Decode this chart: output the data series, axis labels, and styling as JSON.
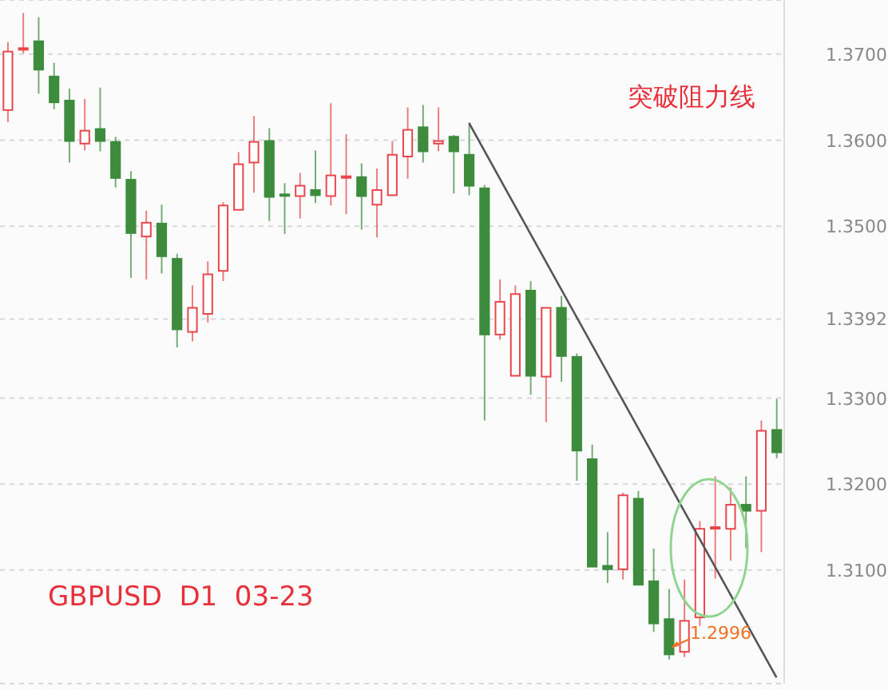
{
  "chart_data": {
    "type": "candlestick",
    "categories": [
      null,
      null,
      null,
      null,
      null,
      null,
      null,
      null,
      null,
      null,
      null,
      null,
      null,
      null,
      null,
      null,
      null,
      null,
      null,
      null,
      null,
      null,
      null,
      null,
      null,
      null,
      null,
      null,
      null,
      null,
      null,
      null,
      null,
      null,
      null,
      null,
      null,
      null,
      null,
      null,
      null,
      null,
      null,
      null,
      null,
      null,
      null,
      null,
      null,
      null,
      null
    ],
    "ohlc": [
      [
        1.3635,
        1.3714,
        1.3621,
        1.3703
      ],
      [
        1.3706,
        1.3748,
        1.3701,
        1.3707
      ],
      [
        1.3715,
        1.3743,
        1.3654,
        1.3682
      ],
      [
        1.3674,
        1.369,
        1.3636,
        1.3644
      ],
      [
        1.3646,
        1.366,
        1.3574,
        1.3599
      ],
      [
        1.3596,
        1.3648,
        1.3588,
        1.3611
      ],
      [
        1.3613,
        1.3661,
        1.3587,
        1.3599
      ],
      [
        1.3598,
        1.3604,
        1.3545,
        1.3556
      ],
      [
        1.3554,
        1.3564,
        1.344,
        1.3492
      ],
      [
        1.3488,
        1.3518,
        1.3438,
        1.3504
      ],
      [
        1.3503,
        1.3525,
        1.3445,
        1.3465
      ],
      [
        1.3462,
        1.3468,
        1.3359,
        1.338
      ],
      [
        1.3377,
        1.3431,
        1.3366,
        1.3405
      ],
      [
        1.3398,
        1.3459,
        1.3388,
        1.3444
      ],
      [
        1.3448,
        1.3528,
        1.3436,
        1.3524
      ],
      [
        1.3519,
        1.3586,
        1.3518,
        1.3572
      ],
      [
        1.3574,
        1.3628,
        1.3539,
        1.3598
      ],
      [
        1.3599,
        1.3614,
        1.3506,
        1.3534
      ],
      [
        1.3537,
        1.355,
        1.3491,
        1.3536
      ],
      [
        1.3535,
        1.3562,
        1.3509,
        1.3547
      ],
      [
        1.3542,
        1.3588,
        1.3527,
        1.3536
      ],
      [
        1.3535,
        1.3643,
        1.3524,
        1.3559
      ],
      [
        1.3557,
        1.3607,
        1.3514,
        1.3558
      ],
      [
        1.3557,
        1.3573,
        1.3496,
        1.3535
      ],
      [
        1.3525,
        1.3567,
        1.3487,
        1.3542
      ],
      [
        1.3536,
        1.3599,
        1.3535,
        1.3583
      ],
      [
        1.3581,
        1.3638,
        1.3555,
        1.3612
      ],
      [
        1.3615,
        1.3641,
        1.3574,
        1.3587
      ],
      [
        1.3596,
        1.3638,
        1.3587,
        1.3599
      ],
      [
        1.3604,
        1.3606,
        1.3538,
        1.3587
      ],
      [
        1.3583,
        1.3618,
        1.3536,
        1.3547
      ],
      [
        1.3544,
        1.3548,
        1.3274,
        1.3374
      ],
      [
        1.3374,
        1.3438,
        1.3368,
        1.3412
      ],
      [
        1.3326,
        1.3431,
        1.3326,
        1.3421
      ],
      [
        1.3425,
        1.3436,
        1.3304,
        1.3326
      ],
      [
        1.3325,
        1.3405,
        1.3272,
        1.3405
      ],
      [
        1.3405,
        1.3419,
        1.3319,
        1.3349
      ],
      [
        1.3348,
        1.3352,
        1.3204,
        1.3239
      ],
      [
        1.3229,
        1.3246,
        1.3104,
        1.3104
      ],
      [
        1.3105,
        1.3144,
        1.3085,
        1.3101
      ],
      [
        1.3101,
        1.319,
        1.3089,
        1.3187
      ],
      [
        1.3183,
        1.3192,
        1.3083,
        1.3083
      ],
      [
        1.3087,
        1.3125,
        1.3028,
        1.3038
      ],
      [
        1.3043,
        1.3078,
        1.2996,
        1.3002
      ],
      [
        1.3005,
        1.3089,
        1.2999,
        1.3041
      ],
      [
        1.3045,
        1.3157,
        1.3035,
        1.3148
      ],
      [
        1.3149,
        1.3209,
        1.309,
        1.315
      ],
      [
        1.3148,
        1.3196,
        1.3111,
        1.3176
      ],
      [
        1.3176,
        1.3209,
        1.3126,
        1.3169
      ],
      [
        1.3169,
        1.3274,
        1.3121,
        1.3262
      ],
      [
        1.3263,
        1.3299,
        1.323,
        1.3237
      ]
    ],
    "colors": [
      "#e8474c",
      "#e8474c",
      "#3d8c3d",
      "#3d8c3d",
      "#3d8c3d",
      "#e8474c",
      "#3d8c3d",
      "#3d8c3d",
      "#3d8c3d",
      "#e8474c",
      "#3d8c3d",
      "#3d8c3d",
      "#e8474c",
      "#e8474c",
      "#e8474c",
      "#e8474c",
      "#e8474c",
      "#3d8c3d",
      "#3d8c3d",
      "#e8474c",
      "#3d8c3d",
      "#e8474c",
      "#e8474c",
      "#3d8c3d",
      "#e8474c",
      "#e8474c",
      "#e8474c",
      "#3d8c3d",
      "#e8474c",
      "#3d8c3d",
      "#3d8c3d",
      "#3d8c3d",
      "#e8474c",
      "#e8474c",
      "#3d8c3d",
      "#e8474c",
      "#3d8c3d",
      "#3d8c3d",
      "#3d8c3d",
      "#3d8c3d",
      "#e8474c",
      "#3d8c3d",
      "#3d8c3d",
      "#3d8c3d",
      "#e8474c",
      "#e8474c",
      "#e8474c",
      "#e8474c",
      "#3d8c3d",
      "#e8474c",
      "#3d8c3d"
    ],
    "series": [
      {
        "type": "line",
        "color": "#555555",
        "values": [
          null,
          null,
          null,
          null,
          null,
          null,
          null,
          null,
          null,
          null,
          null,
          null,
          null,
          null,
          null,
          null,
          null,
          null,
          null,
          null,
          null,
          null,
          null,
          null,
          null,
          null,
          null,
          null,
          null,
          null,
          1.362,
          null,
          null,
          null,
          null,
          null,
          null,
          null,
          null,
          null,
          null,
          null,
          null,
          null,
          null,
          null,
          null,
          null,
          null,
          null,
          1.2975
        ]
      }
    ],
    "ylim": [
      1.2968,
      1.3763
    ],
    "yticks": [
      {
        "value": 1.31,
        "label": "1.3100"
      },
      {
        "value": 1.32,
        "label": "1.3200"
      },
      {
        "value": 1.33,
        "label": "1.3300"
      },
      1.3392,
      {
        "value": 1.35,
        "label": "1.3500"
      },
      {
        "value": 1.36,
        "label": "1.3600"
      },
      {
        "value": 1.37,
        "label": "1.3700"
      }
    ],
    "tick_labels": "y",
    "grid": "y",
    "annotations": [
      "突破阻力线",
      "GBPUSD  D1  03-23",
      "1.2996"
    ]
  }
}
